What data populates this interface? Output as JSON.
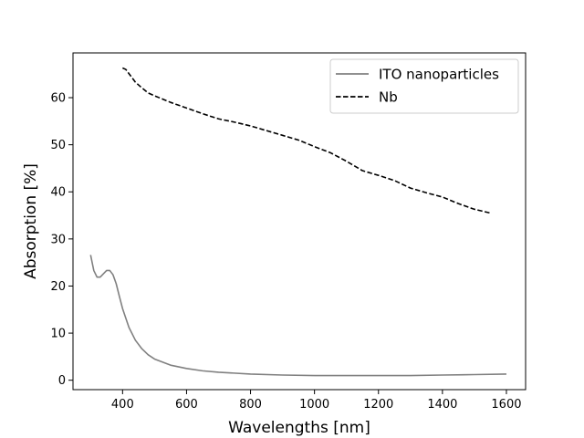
{
  "chart_data": {
    "type": "line",
    "title": "",
    "xlabel": "Wavelengths [nm]",
    "ylabel": "Absorption [%]",
    "xlim": [
      245,
      1660
    ],
    "ylim": [
      -2,
      69.5
    ],
    "xticks": [
      400,
      600,
      800,
      1000,
      1200,
      1400,
      1600
    ],
    "yticks": [
      0,
      10,
      20,
      30,
      40,
      50,
      60
    ],
    "grid": false,
    "legend_position": "top-right",
    "series": [
      {
        "name": "ITO nanoparticles",
        "color": "#808080",
        "style": "solid",
        "x": [
          300,
          310,
          320,
          330,
          340,
          350,
          360,
          370,
          380,
          390,
          400,
          420,
          440,
          460,
          480,
          500,
          550,
          600,
          650,
          700,
          800,
          900,
          1000,
          1100,
          1200,
          1300,
          1400,
          1500,
          1600
        ],
        "y": [
          26.6,
          23.3,
          21.9,
          21.9,
          22.6,
          23.3,
          23.3,
          22.4,
          20.5,
          17.8,
          15.2,
          11.2,
          8.5,
          6.7,
          5.4,
          4.5,
          3.2,
          2.5,
          2.0,
          1.7,
          1.3,
          1.1,
          1.0,
          1.0,
          1.0,
          1.0,
          1.1,
          1.2,
          1.3
        ]
      },
      {
        "name": "Nb",
        "color": "#000000",
        "style": "dashed",
        "x": [
          400,
          410,
          420,
          440,
          460,
          480,
          500,
          550,
          600,
          650,
          700,
          750,
          800,
          850,
          900,
          950,
          1000,
          1050,
          1100,
          1150,
          1200,
          1250,
          1300,
          1350,
          1400,
          1450,
          1500,
          1550
        ],
        "y": [
          66.3,
          66.0,
          65.1,
          63.3,
          62.1,
          61.0,
          60.4,
          59.0,
          57.8,
          56.6,
          55.5,
          54.8,
          54.0,
          53.0,
          52.0,
          51.0,
          49.6,
          48.3,
          46.5,
          44.5,
          43.5,
          42.4,
          40.8,
          39.8,
          38.9,
          37.5,
          36.3,
          35.5
        ]
      }
    ]
  }
}
